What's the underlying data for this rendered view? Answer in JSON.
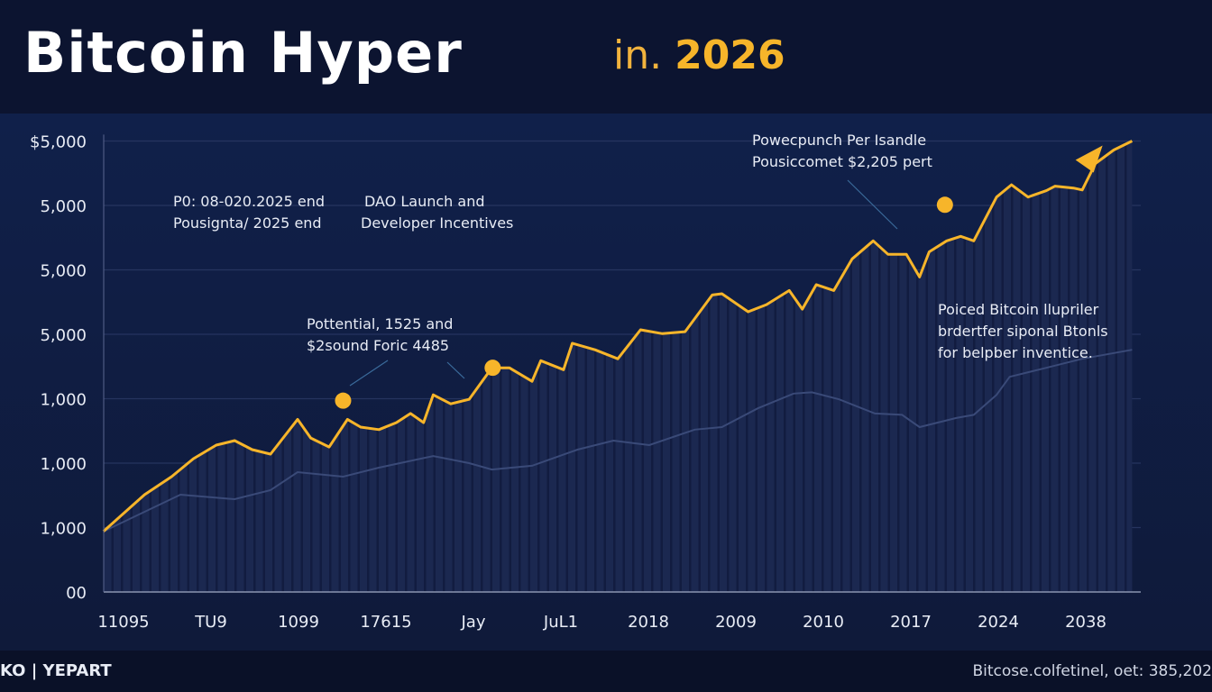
{
  "header": {
    "title": "Bitcoin Hyper",
    "subtitle_prefix": "in.",
    "subtitle_year": "2026"
  },
  "footer": {
    "logo": "KO | YEPART",
    "source": "Bitcose.colfetinel, oet: 385,202"
  },
  "colors": {
    "background": "#0f1a3a",
    "header": "#0c1430",
    "accent": "#f7b52a",
    "secondary_line": "#3a4a78",
    "bars": "#1f2c55"
  },
  "annotations": [
    {
      "lines": [
        "P0: 08-020.2025 end",
        "Pousignta/ 2025 end"
      ]
    },
    {
      "lines": [
        "DAO Launch and",
        "Developer Incentives"
      ]
    },
    {
      "lines": [
        "Pottential, 1525 and",
        "$2sound  Foric 4485"
      ]
    },
    {
      "lines": [
        "Powecpunch Per Isandle",
        "Pousiccomet $2,205 pert"
      ]
    },
    {
      "lines": [
        "Poiced Bitcoin llupriler",
        "brdertfer siponal Btonls",
        "for belpber inventice."
      ]
    }
  ],
  "chart_data": {
    "type": "area",
    "title": "",
    "xlabel": "",
    "ylabel": "",
    "categories": [
      "11095",
      "TU9",
      "1099",
      "17615",
      "Jay",
      "JuL1",
      "2018",
      "2009",
      "2010",
      "2017",
      "2024",
      "2038"
    ],
    "y_tick_labels": [
      "00",
      "1,000",
      "1,000",
      "1,000",
      "5,000",
      "5,000",
      "5,000",
      "$5,000"
    ],
    "ylim": [
      0,
      7
    ],
    "xlim": [
      -0.23,
      11.6
    ],
    "grid": true,
    "legend": "none",
    "series": [
      {
        "role": "main",
        "color": "#f7b52a",
        "points": [
          [
            -0.23,
            0.94
          ],
          [
            0.24,
            1.51
          ],
          [
            0.55,
            1.79
          ],
          [
            0.8,
            2.07
          ],
          [
            1.06,
            2.28
          ],
          [
            1.27,
            2.35
          ],
          [
            1.47,
            2.21
          ],
          [
            1.68,
            2.14
          ],
          [
            1.99,
            2.68
          ],
          [
            2.14,
            2.39
          ],
          [
            2.35,
            2.25
          ],
          [
            2.56,
            2.68
          ],
          [
            2.71,
            2.56
          ],
          [
            2.92,
            2.52
          ],
          [
            3.12,
            2.63
          ],
          [
            3.28,
            2.77
          ],
          [
            3.43,
            2.63
          ],
          [
            3.54,
            3.06
          ],
          [
            3.74,
            2.92
          ],
          [
            3.95,
            2.99
          ],
          [
            4.21,
            3.48
          ],
          [
            4.41,
            3.48
          ],
          [
            4.67,
            3.27
          ],
          [
            4.77,
            3.59
          ],
          [
            5.03,
            3.45
          ],
          [
            5.13,
            3.86
          ],
          [
            5.39,
            3.76
          ],
          [
            5.65,
            3.62
          ],
          [
            5.91,
            4.07
          ],
          [
            6.16,
            4.01
          ],
          [
            6.42,
            4.04
          ],
          [
            6.73,
            4.61
          ],
          [
            6.84,
            4.63
          ],
          [
            7.14,
            4.35
          ],
          [
            7.35,
            4.46
          ],
          [
            7.61,
            4.68
          ],
          [
            7.76,
            4.39
          ],
          [
            7.92,
            4.77
          ],
          [
            8.12,
            4.68
          ],
          [
            8.33,
            5.17
          ],
          [
            8.57,
            5.45
          ],
          [
            8.74,
            5.24
          ],
          [
            8.95,
            5.24
          ],
          [
            9.1,
            4.89
          ],
          [
            9.21,
            5.28
          ],
          [
            9.41,
            5.45
          ],
          [
            9.57,
            5.52
          ],
          [
            9.72,
            5.45
          ],
          [
            9.98,
            6.13
          ],
          [
            10.15,
            6.32
          ],
          [
            10.34,
            6.13
          ],
          [
            10.55,
            6.23
          ],
          [
            10.65,
            6.3
          ],
          [
            10.86,
            6.27
          ],
          [
            10.96,
            6.24
          ],
          [
            11.11,
            6.65
          ],
          [
            11.32,
            6.86
          ],
          [
            11.53,
            7.0
          ]
        ]
      },
      {
        "role": "secondary",
        "color": "#3a4a78",
        "points": [
          [
            -0.23,
            0.94
          ],
          [
            0.65,
            1.51
          ],
          [
            1.27,
            1.44
          ],
          [
            1.68,
            1.58
          ],
          [
            1.99,
            1.86
          ],
          [
            2.51,
            1.79
          ],
          [
            2.92,
            1.93
          ],
          [
            3.54,
            2.11
          ],
          [
            3.95,
            2.0
          ],
          [
            4.21,
            1.9
          ],
          [
            4.67,
            1.96
          ],
          [
            5.19,
            2.21
          ],
          [
            5.6,
            2.35
          ],
          [
            6.01,
            2.28
          ],
          [
            6.53,
            2.52
          ],
          [
            6.84,
            2.56
          ],
          [
            7.25,
            2.85
          ],
          [
            7.66,
            3.08
          ],
          [
            7.87,
            3.1
          ],
          [
            8.18,
            2.99
          ],
          [
            8.59,
            2.77
          ],
          [
            8.9,
            2.75
          ],
          [
            9.1,
            2.56
          ],
          [
            9.52,
            2.7
          ],
          [
            9.72,
            2.75
          ],
          [
            9.98,
            3.06
          ],
          [
            10.13,
            3.34
          ],
          [
            10.55,
            3.48
          ],
          [
            10.96,
            3.62
          ],
          [
            11.53,
            3.76
          ]
        ]
      }
    ],
    "markers": [
      [
        2.51,
        2.97
      ],
      [
        4.22,
        3.48
      ],
      [
        9.39,
        6.01
      ]
    ]
  }
}
